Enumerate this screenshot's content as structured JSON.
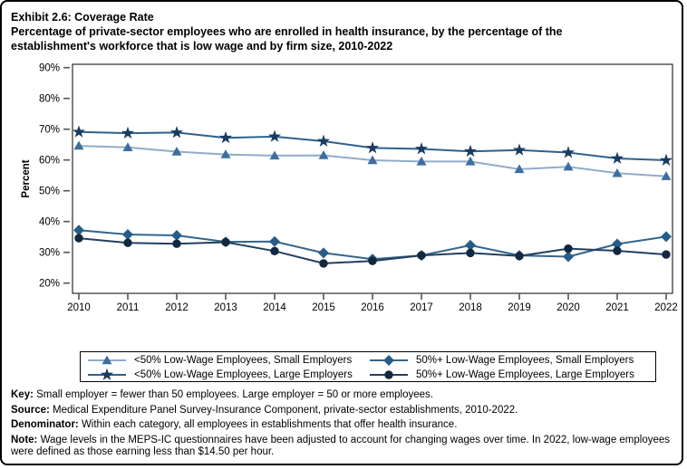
{
  "title": {
    "line1": "Exhibit 2.6: Coverage Rate",
    "line2": "Percentage of private-sector employees who are enrolled in health insurance, by the percentage of the establishment's workforce that is low wage and by firm size, 2010-2022"
  },
  "chart_data": {
    "type": "line",
    "title": "Coverage Rate",
    "xlabel": "",
    "ylabel": "Percent",
    "ylim": [
      20,
      90
    ],
    "ytick_suffix": "%",
    "yticks": [
      90,
      80,
      70,
      60,
      50,
      40,
      30,
      20
    ],
    "grid": false,
    "legend_position": "bottom",
    "x": [
      2010,
      2011,
      2012,
      2013,
      2014,
      2015,
      2016,
      2017,
      2018,
      2019,
      2020,
      2021,
      2022
    ],
    "series": [
      {
        "name": "<50% Low-Wage Employees, Small Employers",
        "marker": "triangle",
        "line_color": "#8FACCA",
        "marker_color": "#3D6E9E",
        "values": [
          64.6,
          64.1,
          62.7,
          61.8,
          61.4,
          61.5,
          59.9,
          59.5,
          59.5,
          57.0,
          57.8,
          55.7,
          54.7
        ]
      },
      {
        "name": "<50% Low-Wage Employees, Large Employers",
        "marker": "star",
        "line_color": "#2E6189",
        "marker_color": "#1B3B60",
        "values": [
          69.1,
          68.7,
          68.9,
          67.2,
          67.6,
          66.1,
          63.9,
          63.6,
          62.8,
          63.2,
          62.4,
          60.5,
          59.9
        ]
      },
      {
        "name": "50%+ Low-Wage Employees, Small Employers",
        "marker": "diamond",
        "line_color": "#34658C",
        "marker_color": "#275C86",
        "values": [
          37.2,
          35.8,
          35.5,
          33.4,
          33.5,
          29.8,
          27.8,
          29.0,
          32.3,
          29.0,
          28.6,
          32.7,
          35.1
        ]
      },
      {
        "name": "50%+ Low-Wage Employees, Large Employers",
        "marker": "circle",
        "line_color": "#223F5E",
        "marker_color": "#11283F",
        "values": [
          34.6,
          33.1,
          32.8,
          33.3,
          30.4,
          26.4,
          27.2,
          29.0,
          29.8,
          28.8,
          31.2,
          30.5,
          29.3
        ]
      }
    ]
  },
  "footer": {
    "lines": [
      {
        "label": "Key:",
        "text": " Small employer = fewer than 50 employees. Large employer = 50 or more employees."
      },
      {
        "label": "Source:",
        "text": " Medical Expenditure Panel Survey-Insurance Component, private-sector establishments, 2010-2022."
      },
      {
        "label": "Denominator:",
        "text": " Within each category, all employees in establishments that offer health insurance."
      },
      {
        "label": "Note:",
        "text": " Wage levels in the MEPS-IC questionnaires have been adjusted to account for changing wages over time. In 2022, low-wage employees were defined as those earning less than $14.50 per hour."
      }
    ]
  }
}
